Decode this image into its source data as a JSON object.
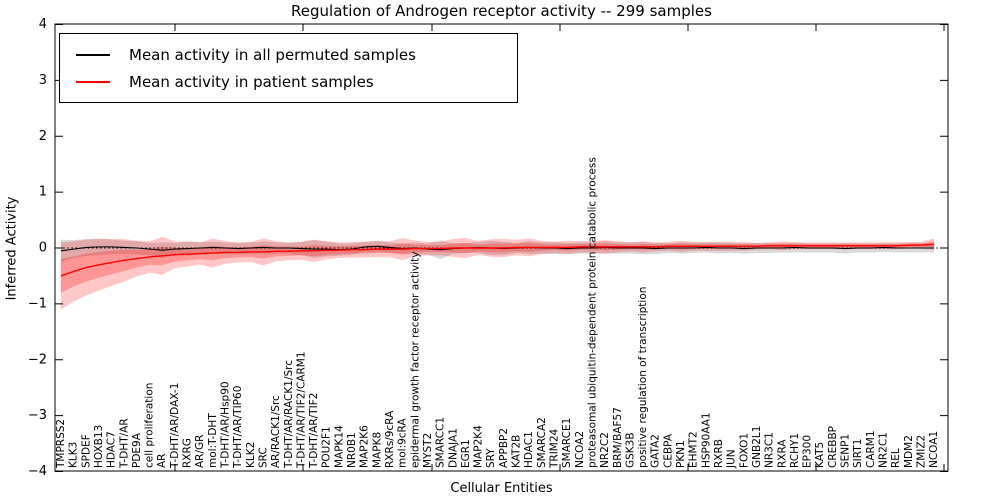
{
  "figure": {
    "title": "Regulation of Androgen receptor activity -- 299 samples",
    "xlabel": "Cellular Entities",
    "ylabel": "Inferred Activity",
    "legend": [
      {
        "label": "Mean activity in all permuted samples",
        "color": "#000000"
      },
      {
        "label": "Mean activity in patient samples",
        "color": "#ff0000"
      }
    ]
  },
  "chart_data": {
    "type": "line",
    "title": "Regulation of Androgen receptor activity -- 299 samples",
    "xlabel": "Cellular Entities",
    "ylabel": "Inferred Activity",
    "ylim": [
      -4,
      4
    ],
    "yticks": [
      4,
      3,
      2,
      1,
      0,
      -1,
      -2,
      -3,
      -4
    ],
    "grid": false,
    "legend_position": "upper left",
    "zero_line_style": "dotted",
    "band_colors": {
      "permuted": "rgba(0,0,0,0.15)",
      "patient_outer": "rgba(255,0,0,0.22)",
      "patient_inner": "rgba(255,0,0,0.25)"
    },
    "categories": [
      "TMPRSS2",
      "KLK3",
      "SPDEF",
      "HOXB13",
      "HDAC7",
      "T-DHT/AR",
      "PDE9A",
      "cell proliferation",
      "AR",
      "T-DHT/AR/DAX-1",
      "RXRG",
      "AR/GR",
      "mol:T-DHT",
      "T-DHT/AR/Hsp90",
      "T-DHT/AR/TIP60",
      "KLK2",
      "SRC",
      "AR/RACK1/Src",
      "T-DHT/AR/RACK1/Src",
      "T-DHT/AR/TIF2/CARM1",
      "T-DHT/AR/TIF2",
      "POU2F1",
      "MAPK14",
      "NR0B1",
      "MAP2K6",
      "MAPK8",
      "RXRs/9cRA",
      "mol:9cRA",
      "epidermal growth factor receptor activity",
      "MYST2",
      "SMARCC1",
      "DNAJA1",
      "EGR1",
      "MAP2K4",
      "SRY",
      "APPBP2",
      "KAT2B",
      "HDAC1",
      "SMARCA2",
      "TRIM24",
      "SMARCE1",
      "NCOA2",
      "proteasomal ubiquitin-dependent protein catabolic process",
      "NR2C2",
      "BRM/BAF57",
      "GSK3B",
      "positive regulation of transcription",
      "GATA2",
      "CEBPA",
      "PKN1",
      "EHMT2",
      "HSP90AA1",
      "RXRB",
      "JUN",
      "FOXO1",
      "GNB2L1",
      "NR3C1",
      "RXRA",
      "RCHY1",
      "EP300",
      "KAT5",
      "CREBBP",
      "SENP1",
      "SIRT1",
      "CARM1",
      "NR2C1",
      "REL",
      "MDM2",
      "ZMIZ2",
      "NCOA1"
    ],
    "series": [
      {
        "name": "Mean activity in all permuted samples",
        "color": "#000000",
        "values": [
          -0.05,
          -0.02,
          0.01,
          0.02,
          0.02,
          0.01,
          0.0,
          -0.02,
          -0.04,
          -0.02,
          -0.01,
          0.0,
          0.01,
          0.0,
          -0.01,
          0.0,
          0.01,
          0.0,
          0.0,
          -0.01,
          -0.02,
          -0.02,
          -0.03,
          -0.02,
          0.02,
          0.03,
          0.01,
          -0.01,
          0.0,
          -0.02,
          -0.03,
          -0.01,
          0.0,
          0.01,
          0.0,
          -0.01,
          0.0,
          0.01,
          0.0,
          0.0,
          -0.01,
          0.0,
          0.0,
          0.01,
          0.0,
          0.0,
          0.0,
          -0.01,
          0.0,
          0.0,
          0.0,
          0.01,
          0.0,
          0.0,
          -0.01,
          0.0,
          0.0,
          0.0,
          0.01,
          0.0,
          0.0,
          0.0,
          -0.01,
          0.0,
          0.0,
          0.01,
          0.0,
          0.0,
          0.0,
          0.0
        ],
        "band_halfwidth": [
          0.2,
          0.16,
          0.15,
          0.15,
          0.13,
          0.12,
          0.12,
          0.11,
          0.14,
          0.11,
          0.13,
          0.11,
          0.1,
          0.1,
          0.1,
          0.1,
          0.11,
          0.1,
          0.09,
          0.12,
          0.16,
          0.13,
          0.11,
          0.1,
          0.09,
          0.1,
          0.09,
          0.09,
          0.1,
          0.1,
          0.17,
          0.09,
          0.09,
          0.1,
          0.13,
          0.12,
          0.09,
          0.12,
          0.1,
          0.11,
          0.1,
          0.1,
          0.1,
          0.11,
          0.1,
          0.1,
          0.11,
          0.1,
          0.09,
          0.1,
          0.09,
          0.09,
          0.1,
          0.09,
          0.09,
          0.09,
          0.09,
          0.08,
          0.09,
          0.08,
          0.08,
          0.08,
          0.09,
          0.08,
          0.08,
          0.08,
          0.08,
          0.08,
          0.08,
          0.08
        ]
      },
      {
        "name": "Mean activity in patient samples",
        "color": "#ff0000",
        "values": [
          -0.5,
          -0.42,
          -0.35,
          -0.3,
          -0.26,
          -0.22,
          -0.19,
          -0.16,
          -0.14,
          -0.12,
          -0.11,
          -0.1,
          -0.09,
          -0.08,
          -0.08,
          -0.07,
          -0.07,
          -0.06,
          -0.06,
          -0.05,
          -0.05,
          -0.04,
          -0.04,
          -0.03,
          -0.03,
          -0.02,
          -0.02,
          -0.02,
          -0.01,
          -0.01,
          -0.01,
          0.0,
          0.0,
          0.0,
          0.0,
          0.0,
          0.01,
          0.01,
          0.01,
          0.01,
          0.01,
          0.02,
          0.02,
          0.02,
          0.02,
          0.02,
          0.02,
          0.02,
          0.03,
          0.03,
          0.03,
          0.03,
          0.03,
          0.03,
          0.03,
          0.03,
          0.04,
          0.04,
          0.04,
          0.04,
          0.04,
          0.04,
          0.04,
          0.04,
          0.04,
          0.04,
          0.04,
          0.05,
          0.05,
          0.07
        ],
        "sigma": [
          0.3,
          0.27,
          0.25,
          0.23,
          0.21,
          0.19,
          0.16,
          0.14,
          0.17,
          0.12,
          0.11,
          0.1,
          0.13,
          0.1,
          0.09,
          0.09,
          0.12,
          0.09,
          0.08,
          0.08,
          0.1,
          0.08,
          0.07,
          0.07,
          0.07,
          0.07,
          0.07,
          0.1,
          0.07,
          0.06,
          0.06,
          0.08,
          0.09,
          0.06,
          0.08,
          0.08,
          0.07,
          0.08,
          0.06,
          0.05,
          0.06,
          0.05,
          0.05,
          0.06,
          0.05,
          0.04,
          0.05,
          0.04,
          0.04,
          0.05,
          0.04,
          0.04,
          0.04,
          0.04,
          0.04,
          0.03,
          0.03,
          0.04,
          0.03,
          0.03,
          0.03,
          0.03,
          0.03,
          0.03,
          0.03,
          0.03,
          0.03,
          0.03,
          0.03,
          0.05
        ]
      }
    ]
  }
}
